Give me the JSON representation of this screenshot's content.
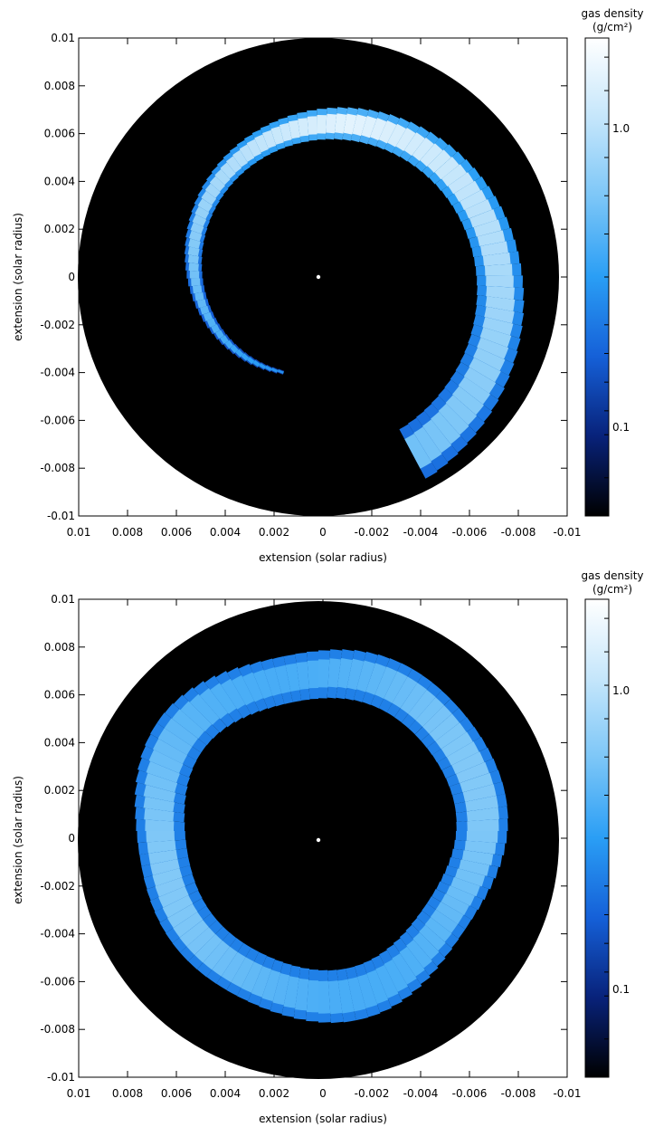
{
  "colorbar": {
    "title_line1": "gas density",
    "title_line2": "(g/cm²)",
    "tick_labels": [
      "1.0",
      "0.1"
    ],
    "gradient_stops": [
      "#000000",
      "#08227a",
      "#1560d8",
      "#2a9ef5",
      "#7cc6f7",
      "#c5e6fb",
      "#ffffff"
    ]
  },
  "chart_data": [
    {
      "type": "heatmap",
      "xlabel": "extension (solar radius)",
      "ylabel": "extension (solar radius)",
      "xlim": [
        0.01,
        -0.01
      ],
      "ylim": [
        -0.01,
        0.01
      ],
      "x_ticks": [
        "0.01",
        "0.008",
        "0.006",
        "0.004",
        "0.002",
        "0",
        "-0.002",
        "-0.004",
        "-0.006",
        "-0.008",
        "-0.01"
      ],
      "y_ticks": [
        "0.01",
        "0.008",
        "0.006",
        "0.004",
        "0.002",
        "0",
        "-0.002",
        "-0.004",
        "-0.006",
        "-0.008",
        "-0.01"
      ],
      "colorbar_ticks": [
        "1.0",
        "0.1"
      ],
      "structure": "spiral arm"
    },
    {
      "type": "heatmap",
      "xlabel": "extension (solar radius)",
      "ylabel": "extension (solar radius)",
      "xlim": [
        0.01,
        -0.01
      ],
      "ylim": [
        -0.01,
        0.01
      ],
      "x_ticks": [
        "0.01",
        "0.008",
        "0.006",
        "0.004",
        "0.002",
        "0",
        "-0.002",
        "-0.004",
        "-0.006",
        "-0.008",
        "-0.01"
      ],
      "y_ticks": [
        "0.01",
        "0.008",
        "0.006",
        "0.004",
        "0.002",
        "0",
        "-0.002",
        "-0.004",
        "-0.006",
        "-0.008",
        "-0.01"
      ],
      "colorbar_ticks": [
        "1.0",
        "0.1"
      ],
      "structure": "ring"
    }
  ]
}
